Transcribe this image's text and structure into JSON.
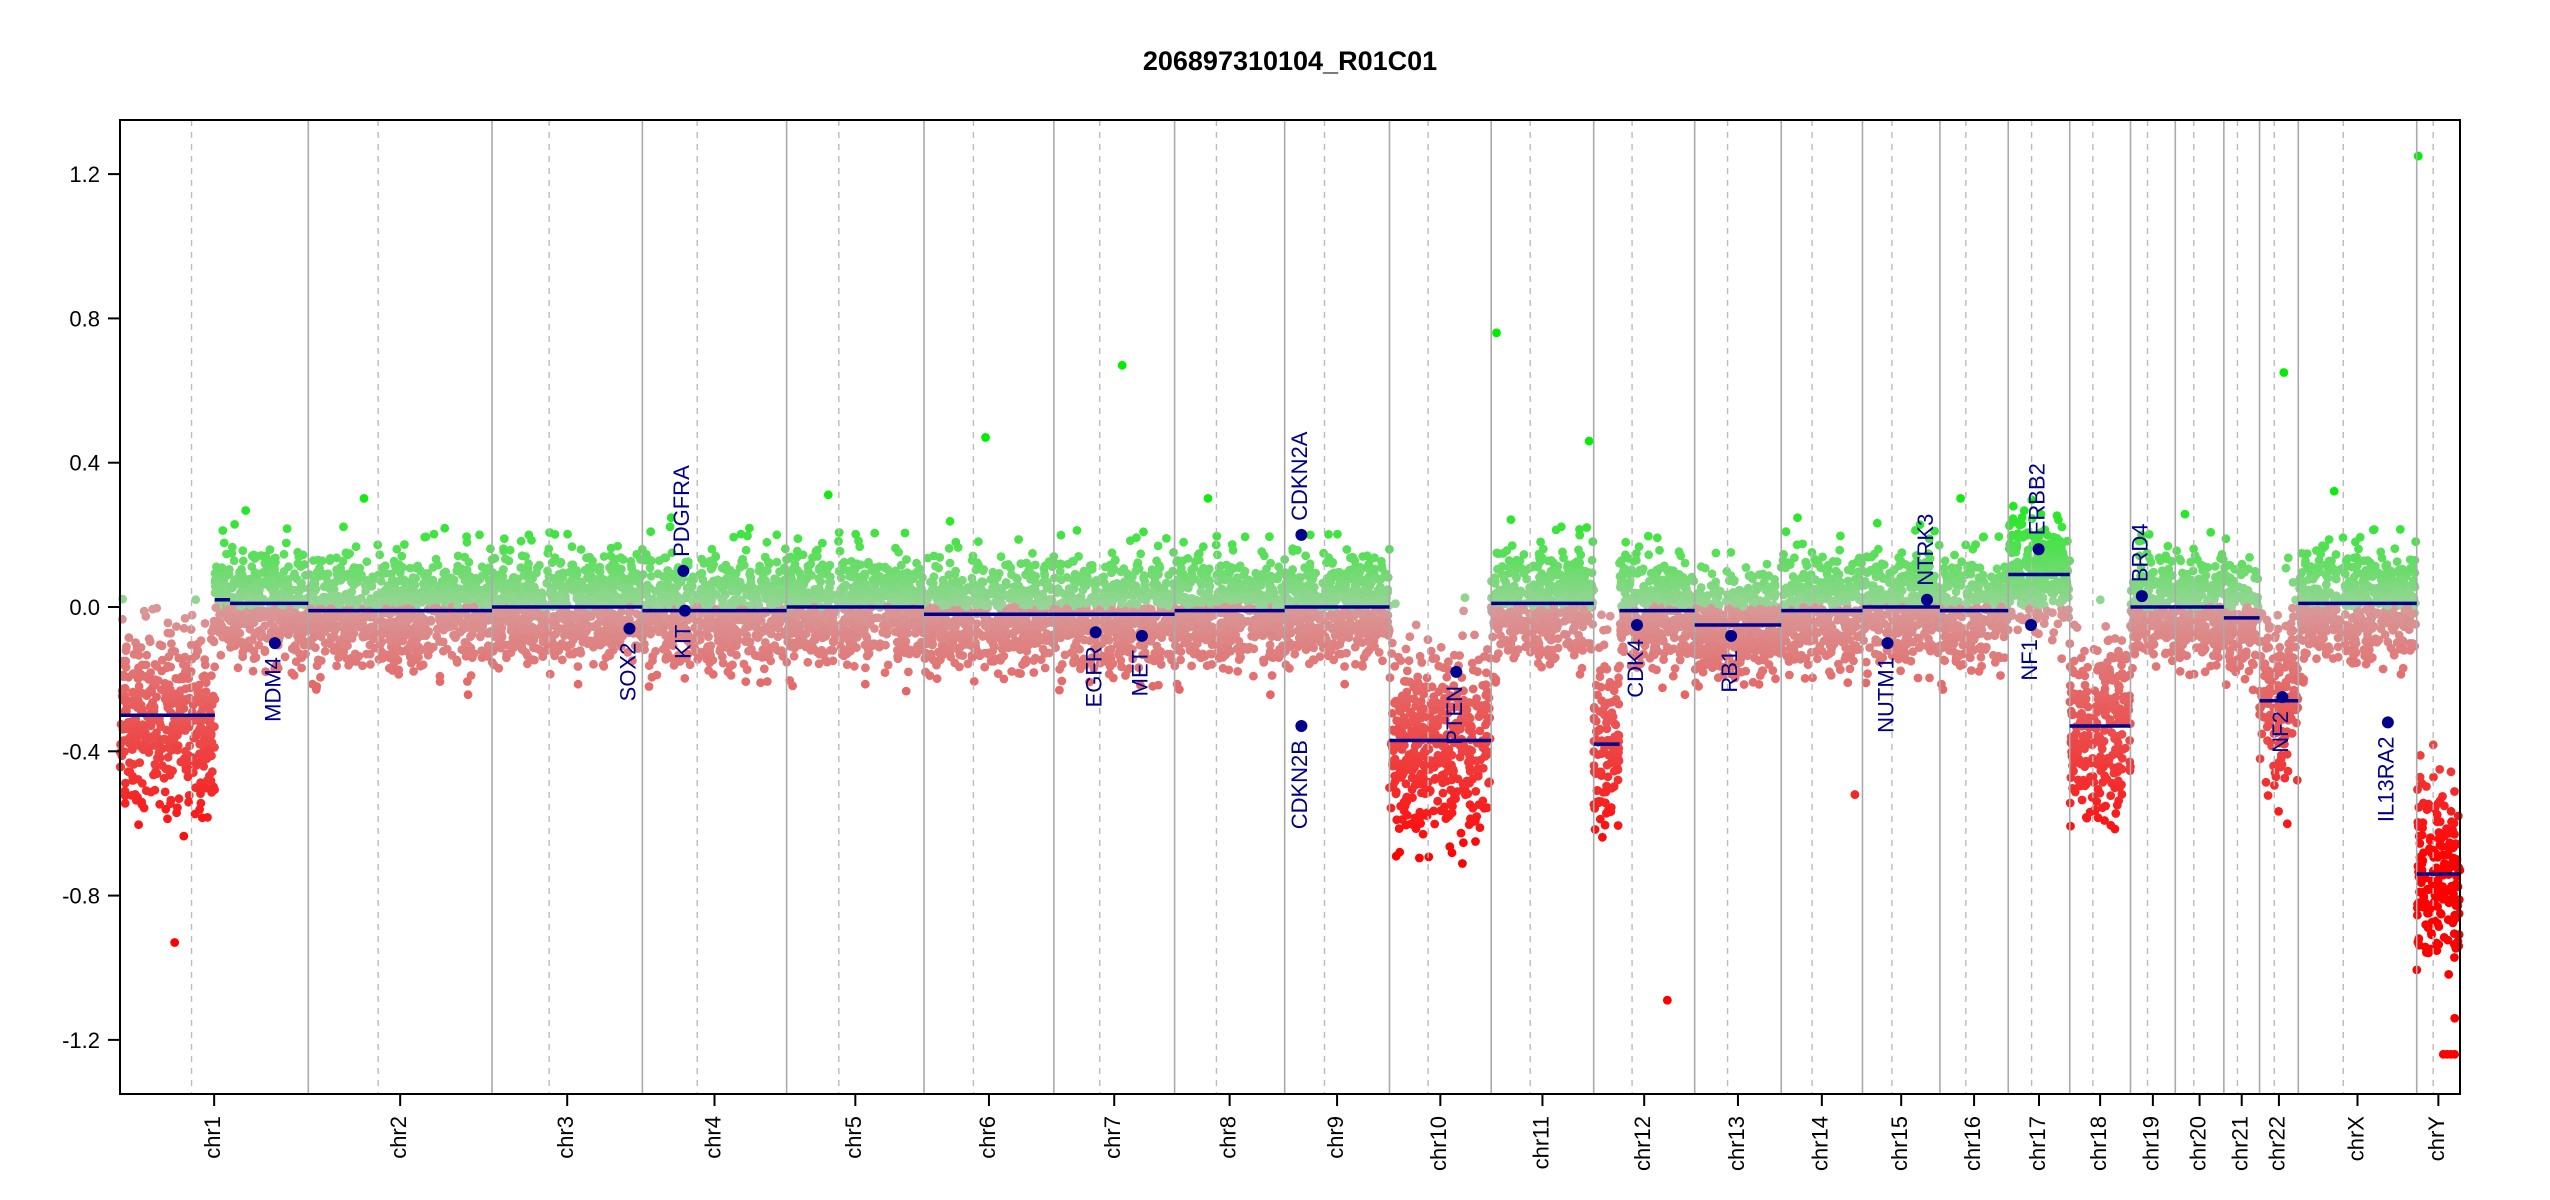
{
  "chart_data": {
    "type": "scatter",
    "title": "206897310104_R01C01",
    "xlabel": "",
    "ylabel": "",
    "ylim": [
      -1.35,
      1.35
    ],
    "yticks": [
      -1.2,
      -0.8,
      -0.4,
      0.0,
      0.4,
      0.8,
      1.2
    ],
    "ytick_labels": [
      "-1.2",
      "-0.8",
      "-0.4",
      "0.0",
      "0.4",
      "0.8",
      "1.2"
    ],
    "grid": false,
    "colors": {
      "gain": "#00ee00",
      "loss": "#ff0000",
      "neutral": "#cccccc",
      "segment": "#00008b",
      "gene": "#00008b",
      "solid_boundary": "#aaaaaa",
      "dashed_boundary": "#bbbbbb"
    },
    "chromosomes": [
      {
        "name": "chr1",
        "start": 0,
        "end": 248,
        "segments": [
          {
            "start": 0,
            "end": 125,
            "value": -0.3
          },
          {
            "start": 125,
            "end": 145,
            "value": 0.02
          },
          {
            "start": 145,
            "end": 248,
            "value": 0.01
          }
        ]
      },
      {
        "name": "chr2",
        "start": 248,
        "end": 490,
        "segments": [
          {
            "start": 248,
            "end": 490,
            "value": -0.01
          }
        ]
      },
      {
        "name": "chr3",
        "start": 490,
        "end": 688,
        "segments": [
          {
            "start": 490,
            "end": 688,
            "value": 0.0
          }
        ]
      },
      {
        "name": "chr4",
        "start": 688,
        "end": 878,
        "segments": [
          {
            "start": 688,
            "end": 878,
            "value": -0.01
          }
        ]
      },
      {
        "name": "chr5",
        "start": 878,
        "end": 1059,
        "segments": [
          {
            "start": 878,
            "end": 1059,
            "value": 0.0
          }
        ]
      },
      {
        "name": "chr6",
        "start": 1059,
        "end": 1230,
        "segments": [
          {
            "start": 1059,
            "end": 1230,
            "value": -0.02
          }
        ]
      },
      {
        "name": "chr7",
        "start": 1230,
        "end": 1389,
        "segments": [
          {
            "start": 1230,
            "end": 1389,
            "value": -0.02
          }
        ]
      },
      {
        "name": "chr8",
        "start": 1389,
        "end": 1534,
        "segments": [
          {
            "start": 1389,
            "end": 1534,
            "value": -0.01
          }
        ]
      },
      {
        "name": "chr9",
        "start": 1534,
        "end": 1672,
        "segments": [
          {
            "start": 1534,
            "end": 1672,
            "value": 0.0
          }
        ]
      },
      {
        "name": "chr10",
        "start": 1672,
        "end": 1806,
        "segments": [
          {
            "start": 1672,
            "end": 1806,
            "value": -0.37
          }
        ]
      },
      {
        "name": "chr11",
        "start": 1806,
        "end": 1941,
        "segments": [
          {
            "start": 1806,
            "end": 1941,
            "value": 0.01
          }
        ]
      },
      {
        "name": "chr12",
        "start": 1941,
        "end": 2074,
        "segments": [
          {
            "start": 1941,
            "end": 1975,
            "value": -0.38
          },
          {
            "start": 1975,
            "end": 2074,
            "value": -0.01
          }
        ]
      },
      {
        "name": "chr13",
        "start": 2074,
        "end": 2188,
        "segments": [
          {
            "start": 2074,
            "end": 2188,
            "value": -0.05
          }
        ]
      },
      {
        "name": "chr14",
        "start": 2188,
        "end": 2295,
        "segments": [
          {
            "start": 2188,
            "end": 2295,
            "value": -0.01
          }
        ]
      },
      {
        "name": "chr15",
        "start": 2295,
        "end": 2397,
        "segments": [
          {
            "start": 2295,
            "end": 2397,
            "value": 0.0
          }
        ]
      },
      {
        "name": "chr16",
        "start": 2397,
        "end": 2487,
        "segments": [
          {
            "start": 2397,
            "end": 2487,
            "value": -0.01
          }
        ]
      },
      {
        "name": "chr17",
        "start": 2487,
        "end": 2568,
        "segments": [
          {
            "start": 2487,
            "end": 2568,
            "value": 0.09
          }
        ]
      },
      {
        "name": "chr18",
        "start": 2568,
        "end": 2648,
        "segments": [
          {
            "start": 2568,
            "end": 2648,
            "value": -0.33
          }
        ]
      },
      {
        "name": "chr19",
        "start": 2648,
        "end": 2707,
        "segments": [
          {
            "start": 2648,
            "end": 2707,
            "value": 0.0
          }
        ]
      },
      {
        "name": "chr20",
        "start": 2707,
        "end": 2771,
        "segments": [
          {
            "start": 2707,
            "end": 2771,
            "value": 0.0
          }
        ]
      },
      {
        "name": "chr21",
        "start": 2771,
        "end": 2818,
        "segments": [
          {
            "start": 2771,
            "end": 2818,
            "value": -0.03
          }
        ]
      },
      {
        "name": "chr22",
        "start": 2818,
        "end": 2869,
        "segments": [
          {
            "start": 2818,
            "end": 2869,
            "value": -0.26
          }
        ]
      },
      {
        "name": "chrX",
        "start": 2869,
        "end": 3025,
        "segments": [
          {
            "start": 2869,
            "end": 3025,
            "value": 0.01
          }
        ]
      },
      {
        "name": "chrY",
        "start": 3025,
        "end": 3082,
        "segments": [
          {
            "start": 3025,
            "end": 3082,
            "value": -0.74
          }
        ]
      }
    ],
    "genes": [
      {
        "name": "MDM4",
        "x": 204,
        "value": -0.1
      },
      {
        "name": "SOX2",
        "x": 671,
        "value": -0.06
      },
      {
        "name": "PDGFRA",
        "x": 742,
        "value": 0.1
      },
      {
        "name": "KIT",
        "x": 744,
        "value": -0.01
      },
      {
        "name": "EGFR",
        "x": 1285,
        "value": -0.07
      },
      {
        "name": "MET",
        "x": 1346,
        "value": -0.08
      },
      {
        "name": "CDKN2A",
        "x": 1556,
        "value": 0.2
      },
      {
        "name": "CDKN2B",
        "x": 1556,
        "value": -0.33
      },
      {
        "name": "PTEN",
        "x": 1760,
        "value": -0.18
      },
      {
        "name": "CDK4",
        "x": 1998,
        "value": -0.05
      },
      {
        "name": "RB1",
        "x": 2122,
        "value": -0.08
      },
      {
        "name": "NUTM1",
        "x": 2328,
        "value": -0.1
      },
      {
        "name": "NTRK3",
        "x": 2380,
        "value": 0.02
      },
      {
        "name": "NF1",
        "x": 2517,
        "value": -0.05
      },
      {
        "name": "ERBB2",
        "x": 2527,
        "value": 0.16
      },
      {
        "name": "BRD4",
        "x": 2663,
        "value": 0.03
      },
      {
        "name": "NF2",
        "x": 2848,
        "value": -0.25
      },
      {
        "name": "IL13RA2",
        "x": 2987,
        "value": -0.32
      }
    ],
    "outliers": [
      {
        "x": 3027,
        "value": 1.25
      },
      {
        "x": 1813,
        "value": 0.76
      },
      {
        "x": 1320,
        "value": 0.67
      },
      {
        "x": 2850,
        "value": 0.65
      },
      {
        "x": 1140,
        "value": 0.47
      },
      {
        "x": 1935,
        "value": 0.46
      },
      {
        "x": 2038,
        "value": -1.09
      },
      {
        "x": 3075,
        "value": -1.14
      },
      {
        "x": 3060,
        "value": -1.24
      },
      {
        "x": 3065,
        "value": -1.24
      },
      {
        "x": 3070,
        "value": -1.24
      },
      {
        "x": 3075,
        "value": -1.24
      },
      {
        "x": 3078,
        "value": -0.7
      },
      {
        "x": 3080,
        "value": -0.73
      },
      {
        "x": 2285,
        "value": -0.52
      },
      {
        "x": 72,
        "value": -0.93
      }
    ]
  }
}
